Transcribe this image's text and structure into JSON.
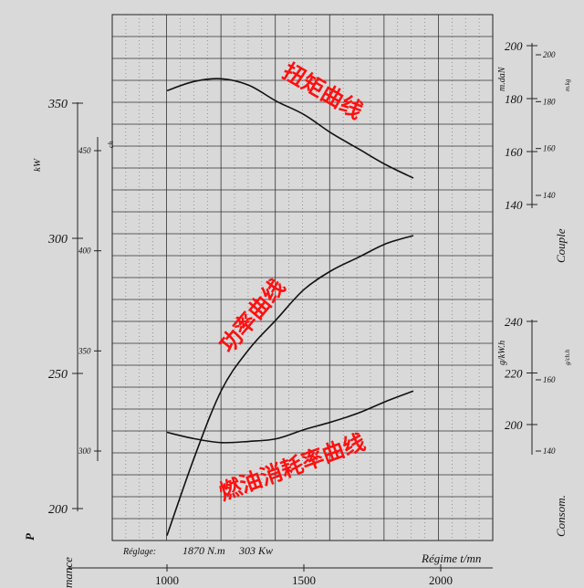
{
  "chart_data": {
    "type": "line",
    "x": {
      "label": "Régime t/mn",
      "range": [
        1000,
        1900
      ],
      "ticks": [
        1000,
        1500,
        2000
      ],
      "tick_labels": [
        "1000",
        "1500",
        "2000"
      ]
    },
    "axes": {
      "power_kw": {
        "label": "kW",
        "ticks": [
          350,
          300,
          250,
          200
        ]
      },
      "power_ch": {
        "label": "ch",
        "ticks": [
          450,
          400,
          350,
          300
        ]
      },
      "power_title": "P",
      "partial_title": "mance",
      "torque_mdan": {
        "label": "m.daN",
        "ticks": [
          200,
          180,
          160,
          140
        ]
      },
      "torque_mkg": {
        "label": "m.kg",
        "ticks": [
          200,
          180,
          160,
          140
        ]
      },
      "couple_title": "Couple",
      "consumption_gkwh": {
        "label": "g/kW.h",
        "ticks": [
          240,
          220,
          200
        ]
      },
      "consumption_gchh": {
        "label": "g/ch.h",
        "ticks": [
          160,
          140
        ]
      },
      "consumption_title": "Consom."
    },
    "series": [
      {
        "name": "扭矩曲线",
        "unit": "m.daN",
        "points": [
          [
            1000,
            183
          ],
          [
            1100,
            186.5
          ],
          [
            1200,
            187.5
          ],
          [
            1300,
            185
          ],
          [
            1400,
            179
          ],
          [
            1500,
            174
          ],
          [
            1600,
            167
          ],
          [
            1700,
            161
          ],
          [
            1800,
            155
          ],
          [
            1900,
            150
          ]
        ]
      },
      {
        "name": "功率曲线",
        "unit": "kW",
        "points": [
          [
            1000,
            190
          ],
          [
            1100,
            219
          ],
          [
            1200,
            244
          ],
          [
            1300,
            259
          ],
          [
            1400,
            270
          ],
          [
            1500,
            281
          ],
          [
            1600,
            288
          ],
          [
            1700,
            293
          ],
          [
            1800,
            298
          ],
          [
            1900,
            301
          ]
        ]
      },
      {
        "name": "燃油消耗率曲线",
        "unit": "g/kW.h",
        "points": [
          [
            1000,
            197
          ],
          [
            1100,
            194.5
          ],
          [
            1200,
            193
          ],
          [
            1300,
            193.5
          ],
          [
            1400,
            194.5
          ],
          [
            1500,
            198
          ],
          [
            1600,
            201
          ],
          [
            1700,
            204.5
          ],
          [
            1800,
            209
          ],
          [
            1900,
            213
          ]
        ]
      }
    ],
    "grid": true,
    "reglage": {
      "label": "Réglage:",
      "torque": "1870 N.m",
      "power": "303 Kw"
    }
  }
}
